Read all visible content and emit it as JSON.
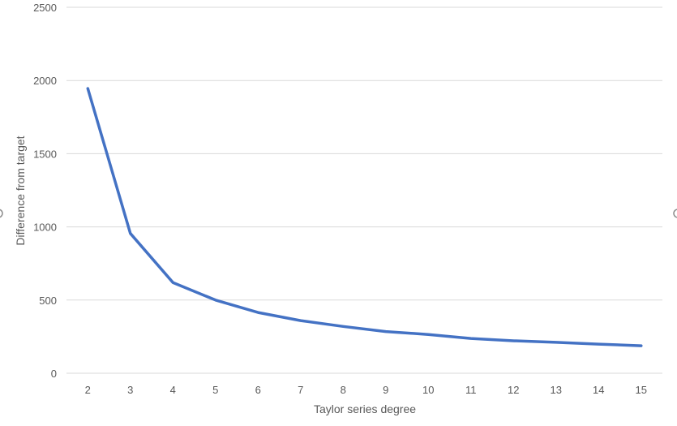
{
  "chart_data": {
    "type": "line",
    "title": "",
    "xlabel": "Taylor series degree",
    "ylabel": "Difference from target",
    "x": [
      2,
      3,
      4,
      5,
      6,
      7,
      8,
      9,
      10,
      11,
      12,
      13,
      14,
      15
    ],
    "series": [
      {
        "values": [
          1945,
          955,
          620,
          500,
          415,
          360,
          320,
          285,
          265,
          238,
          222,
          211,
          199,
          188
        ]
      }
    ],
    "ylim": [
      0,
      2500
    ],
    "yticks": [
      0,
      500,
      1000,
      1500,
      2000,
      2500
    ],
    "grid": true,
    "legend": "none"
  },
  "colors": {
    "series": "#4472c4",
    "grid": "#d9d9d9",
    "text": "#595959"
  }
}
